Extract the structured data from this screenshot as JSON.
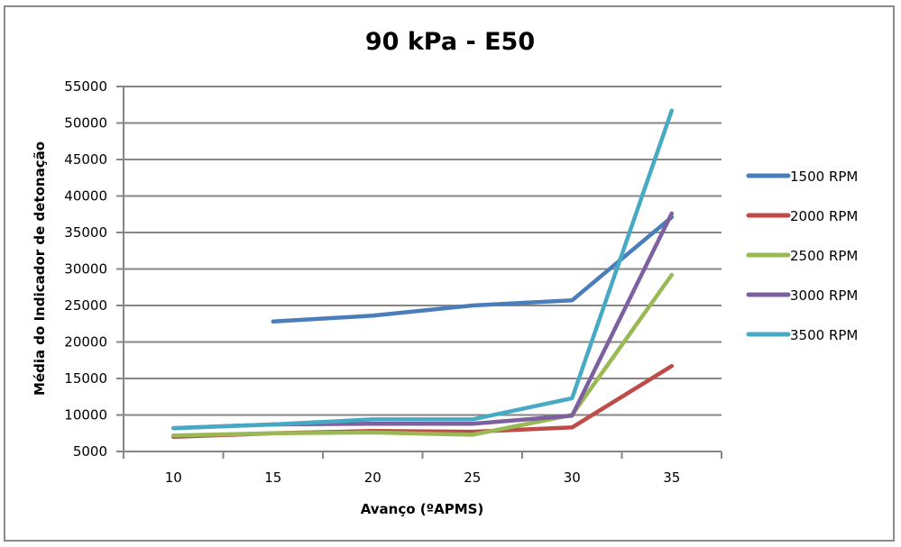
{
  "chart_data": {
    "type": "line",
    "title": "90 kPa - E50",
    "xlabel": "Avanço (ºAPMS)",
    "ylabel": "Média do Indicador de detonação",
    "categories": [
      "10",
      "15",
      "20",
      "25",
      "30",
      "35"
    ],
    "ylim": [
      5000,
      55000
    ],
    "yticks": [
      5000,
      10000,
      15000,
      20000,
      25000,
      30000,
      35000,
      40000,
      45000,
      50000,
      55000
    ],
    "ytick_labels": [
      "5000",
      "10000",
      "15000",
      "20000",
      "25000",
      "30000",
      "35000",
      "40000",
      "45000",
      "50000",
      "55000"
    ],
    "grid": "horizontal",
    "legend_position": "right",
    "series": [
      {
        "name": "1500 RPM",
        "color": "#4a7ebb",
        "values": [
          null,
          22800,
          23600,
          25000,
          25700,
          37100
        ]
      },
      {
        "name": "2000 RPM",
        "color": "#be4b48",
        "values": [
          7000,
          7500,
          7800,
          7700,
          8300,
          16700
        ]
      },
      {
        "name": "2500 RPM",
        "color": "#98b954",
        "values": [
          7200,
          7500,
          7600,
          7300,
          10000,
          29200
        ]
      },
      {
        "name": "3000 RPM",
        "color": "#7d60a0",
        "values": [
          8200,
          8700,
          8800,
          8800,
          9900,
          37600
        ]
      },
      {
        "name": "3500 RPM",
        "color": "#46aac5",
        "values": [
          8200,
          8700,
          9400,
          9400,
          12300,
          51700
        ]
      }
    ]
  }
}
